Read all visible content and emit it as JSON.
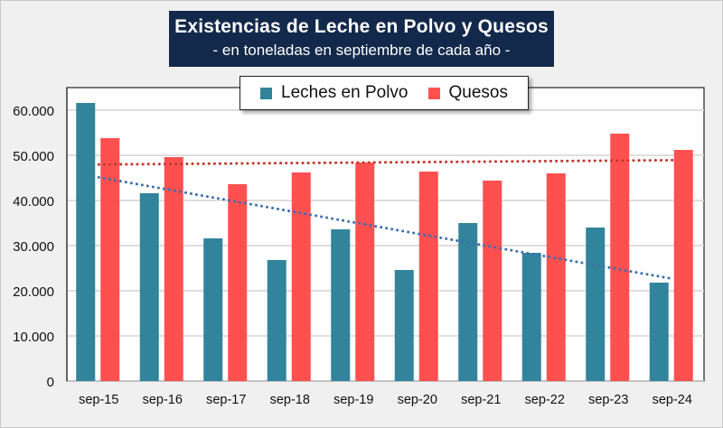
{
  "chart_data": {
    "type": "bar",
    "title": "Existencias de Leche en Polvo y Quesos",
    "subtitle": "- en toneladas en septiembre de cada año -",
    "xlabel": "",
    "ylabel": "",
    "categories": [
      "sep-15",
      "sep-16",
      "sep-17",
      "sep-18",
      "sep-19",
      "sep-20",
      "sep-21",
      "sep-22",
      "sep-23",
      "sep-24"
    ],
    "series": [
      {
        "name": "Leches en Polvo",
        "color": "#31849b",
        "values": [
          61600,
          41600,
          31600,
          26800,
          33600,
          24600,
          35000,
          28400,
          34000,
          21800
        ]
      },
      {
        "name": "Quesos",
        "color": "#ff5050",
        "values": [
          53800,
          49600,
          43600,
          46200,
          48400,
          46400,
          44400,
          46000,
          54800,
          51200
        ]
      }
    ],
    "trendlines": [
      {
        "series": "Leches en Polvo",
        "type": "linear",
        "style": "dotted",
        "color": "#3a6fb0"
      },
      {
        "series": "Quesos",
        "type": "linear",
        "style": "dotted",
        "color": "#c0392b"
      }
    ],
    "ylim": [
      0,
      65000
    ],
    "yticks": [
      0,
      10000,
      20000,
      30000,
      40000,
      50000,
      60000
    ],
    "ytick_labels": [
      "0",
      "10.000",
      "20.000",
      "30.000",
      "40.000",
      "50.000",
      "60.000"
    ],
    "grid": true,
    "legend": "top-center"
  }
}
